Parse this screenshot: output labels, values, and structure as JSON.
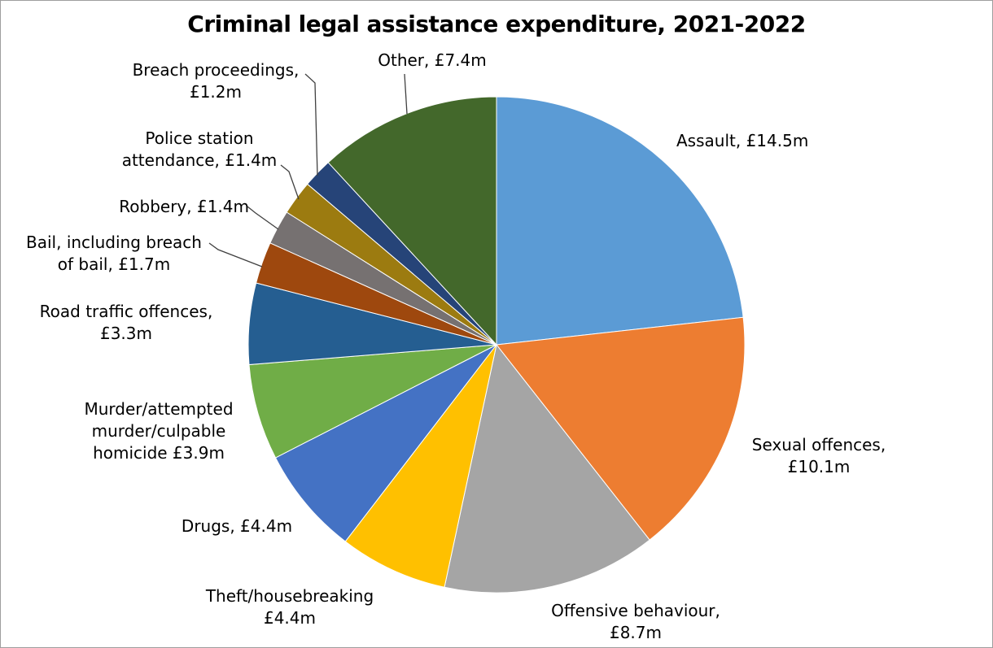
{
  "chart_data": {
    "type": "pie",
    "title": "Criminal legal assistance expenditure, 2021-2022",
    "unit": "£m",
    "total_value": 62.4,
    "start_angle_deg": 0,
    "direction": "clockwise",
    "slice_border_color": "#FFFFFF",
    "leader_line_color": "#404040",
    "segments": [
      {
        "id": "assault",
        "category": "Assault",
        "value": 14.5,
        "color": "#5B9BD5",
        "label_display": "Assault, £14.5m"
      },
      {
        "id": "sexual",
        "category": "Sexual offences",
        "value": 10.1,
        "color": "#ED7D31",
        "label_display": "Sexual offences,\n£10.1m"
      },
      {
        "id": "offensive",
        "category": "Offensive behaviour",
        "value": 8.7,
        "color": "#A5A5A5",
        "label_display": "Offensive behaviour,\n£8.7m"
      },
      {
        "id": "theft",
        "category": "Theft/housebreaking",
        "value": 4.4,
        "color": "#FFC000",
        "label_display": "Theft/housebreaking\n£4.4m"
      },
      {
        "id": "drugs",
        "category": "Drugs",
        "value": 4.4,
        "color": "#4472C4",
        "label_display": "Drugs, £4.4m"
      },
      {
        "id": "murder",
        "category": "Murder/attempted murder/culpable homicide",
        "value": 3.9,
        "color": "#70AD47",
        "label_display": "Murder/attempted\nmurder/culpable\nhomicide £3.9m"
      },
      {
        "id": "road",
        "category": "Road traffic offences",
        "value": 3.3,
        "color": "#255E91",
        "label_display": "Road traffic offences,\n£3.3m"
      },
      {
        "id": "bail",
        "category": "Bail, including breach of bail",
        "value": 1.7,
        "color": "#9E480E",
        "label_display": "Bail, including breach\nof bail, £1.7m"
      },
      {
        "id": "robbery",
        "category": "Robbery",
        "value": 1.4,
        "color": "#767171",
        "label_display": "Robbery, £1.4m"
      },
      {
        "id": "police",
        "category": "Police station attendance",
        "value": 1.4,
        "color": "#9C7B10",
        "label_display": "Police station\nattendance, £1.4m"
      },
      {
        "id": "breach",
        "category": "Breach proceedings",
        "value": 1.2,
        "color": "#264478",
        "label_display": "Breach proceedings,\n£1.2m"
      },
      {
        "id": "other",
        "category": "Other",
        "value": 7.4,
        "color": "#43682B",
        "label_display": "Other, £7.4m"
      }
    ]
  }
}
